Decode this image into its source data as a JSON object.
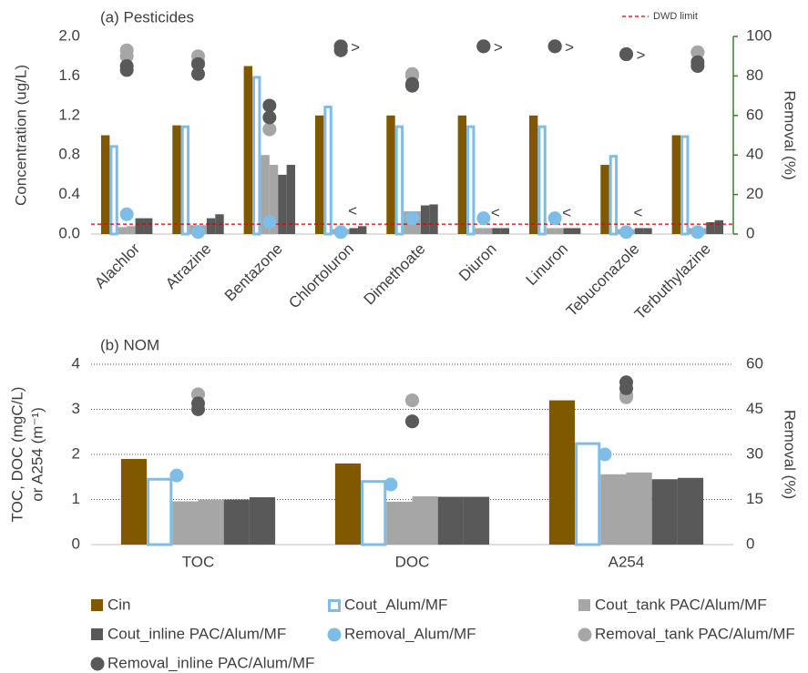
{
  "chart_data": [
    {
      "type": "bar",
      "title": "(a) Pesticides",
      "ylabel": "Concentration (ug/L)",
      "y2label": "Removal (%)",
      "categories": [
        "Alachlor",
        "Atrazine",
        "Bentazone",
        "Chlortoluron",
        "Dimethoate",
        "Diuron",
        "Linuron",
        "Tebuconazole",
        "Terbuthylazine"
      ],
      "x_label_rotation": -45,
      "ylim": [
        0,
        2
      ],
      "yticks": [
        {
          "value": 0,
          "label": "0.0"
        },
        0.4,
        0.8,
        1.2,
        1.6,
        {
          "value": 2,
          "label": "2.0"
        }
      ],
      "y2lim": [
        0,
        100
      ],
      "y2ticks": [
        0,
        20,
        40,
        60,
        80,
        100
      ],
      "y2_color": "#3a7d2c",
      "grid": false,
      "legend": "bottom",
      "series": [
        {
          "name": "Cin",
          "type": "bar",
          "fill": true,
          "color": "#7f5800",
          "values": [
            1.0,
            1.1,
            1.7,
            1.2,
            1.2,
            1.2,
            1.2,
            0.7,
            1.0
          ]
        },
        {
          "name": "Cout_Alum/MF",
          "type": "bar",
          "fill": false,
          "color": "#7dbde8",
          "values": [
            0.9,
            1.1,
            1.6,
            1.3,
            1.1,
            1.1,
            1.1,
            0.8,
            1.0
          ]
        },
        {
          "name": "Cout_tank PAC/Alum/MF",
          "type": "bar",
          "fill": true,
          "color": "#a6a6a6",
          "values": [
            [
              0.07,
              0.08
            ],
            [
              0.09,
              0.09
            ],
            [
              0.8,
              0.7
            ],
            [
              0.05,
              0.05
            ],
            [
              0.23,
              0.23
            ],
            [
              0.06,
              0.06
            ],
            [
              0.06,
              0.06
            ],
            [
              0.05,
              0.05
            ],
            [
              0.06,
              0.06
            ]
          ]
        },
        {
          "name": "Cout_inline PAC/Alum/MF",
          "type": "bar",
          "fill": true,
          "color": "#595959",
          "values": [
            [
              0.16,
              0.16
            ],
            [
              0.16,
              0.2
            ],
            [
              0.6,
              0.7
            ],
            [
              0.06,
              0.08
            ],
            [
              0.29,
              0.3
            ],
            [
              0.06,
              0.06
            ],
            [
              0.06,
              0.06
            ],
            [
              0.06,
              0.06
            ],
            [
              0.12,
              0.14
            ]
          ]
        },
        {
          "name": "Removal_Alum/MF",
          "type": "scatter",
          "axis": "y2",
          "color": "#7dbde8",
          "values": [
            10,
            1,
            6,
            1,
            8,
            8,
            8,
            1,
            1
          ]
        },
        {
          "name": "Removal_tank PAC/Alum/MF",
          "type": "scatter",
          "axis": "y2",
          "color": "#a6a6a6",
          "values": [
            [
              93,
              90
            ],
            [
              90,
              87
            ],
            [
              53,
              53
            ],
            [
              95,
              93
            ],
            [
              81,
              80
            ],
            [
              95,
              95
            ],
            [
              95,
              95
            ],
            [
              91,
              91
            ],
            [
              92,
              92
            ]
          ]
        },
        {
          "name": "Removal_inline PAC/Alum/MF",
          "type": "scatter",
          "axis": "y2",
          "color": "#595959",
          "values": [
            [
              85,
              83
            ],
            [
              86,
              81
            ],
            [
              65,
              59
            ],
            [
              95,
              93
            ],
            [
              76,
              75
            ],
            [
              95,
              95
            ],
            [
              95,
              95
            ],
            [
              91,
              91
            ],
            [
              87,
              85
            ]
          ]
        }
      ],
      "limit": {
        "label": "DWD limit",
        "value": 0.1,
        "color": "#e00000"
      },
      "annotations": [
        {
          "text": ">",
          "index": 3
        },
        {
          "text": ">",
          "index": 5
        },
        {
          "text": ">",
          "index": 6
        },
        {
          "text": ">",
          "index": 7
        },
        {
          "text": "<",
          "index": 3
        },
        {
          "text": "<",
          "index": 5
        },
        {
          "text": "<",
          "index": 6
        },
        {
          "text": "<",
          "index": 7
        }
      ]
    },
    {
      "type": "bar",
      "title": "(b) NOM",
      "ylabel": [
        "TOC, DOC (mgC/L)",
        "or A254 (m⁻¹)"
      ],
      "y2label": "Removal (%)",
      "categories": [
        "TOC",
        "DOC",
        "A254"
      ],
      "ylim": [
        0,
        4
      ],
      "yticks": [
        0,
        1,
        2,
        3,
        4
      ],
      "y2lim": [
        0,
        60
      ],
      "y2ticks": [
        0,
        15,
        30,
        45,
        60
      ],
      "grid": true,
      "series": [
        {
          "type": "bar",
          "values": [
            1.9,
            1.8,
            3.2
          ]
        },
        {
          "type": "bar",
          "values": [
            1.48,
            1.43,
            2.27
          ]
        },
        {
          "type": "bar",
          "values": [
            [
              0.96,
              1.0
            ],
            [
              0.95,
              1.07
            ],
            [
              1.56,
              1.6
            ]
          ]
        },
        {
          "type": "bar",
          "values": [
            [
              1.0,
              1.05
            ],
            [
              1.06,
              1.06
            ],
            [
              1.45,
              1.48
            ]
          ]
        },
        {
          "type": "scatter",
          "axis": "y2",
          "values": [
            23,
            20,
            30
          ]
        },
        {
          "type": "scatter",
          "axis": "y2",
          "values": [
            [
              50,
              50
            ],
            [
              48,
              48
            ],
            [
              50,
              49
            ]
          ]
        },
        {
          "type": "scatter",
          "axis": "y2",
          "values": [
            [
              47,
              45
            ],
            [
              41,
              41
            ],
            [
              54,
              52
            ]
          ]
        }
      ]
    }
  ]
}
